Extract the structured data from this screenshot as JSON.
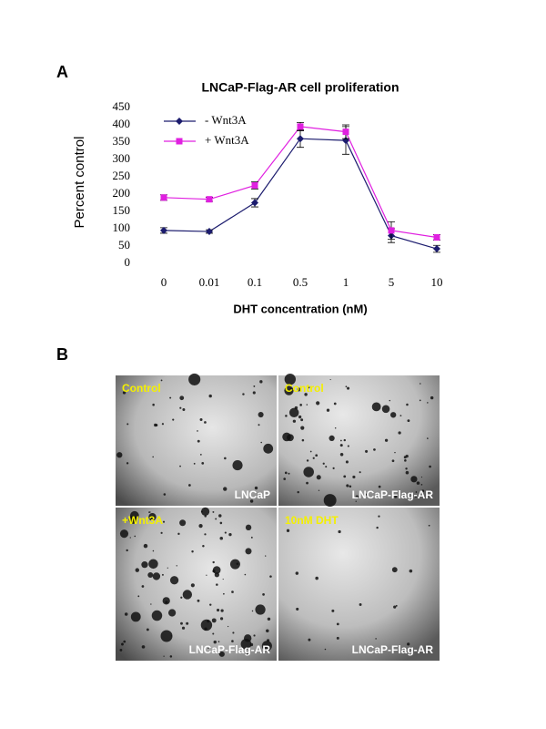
{
  "chart_data": {
    "type": "line",
    "title": "LNCaP-Flag-AR cell proliferation",
    "x_label": "DHT concentration (nM)",
    "y_label": "Percent control",
    "categories": [
      "0",
      "0.01",
      "0.1",
      "0.5",
      "1",
      "5",
      "10"
    ],
    "series": [
      {
        "name": "- Wnt3A",
        "color": "#1c1c6e",
        "marker": "diamond",
        "values": [
          95,
          92,
          175,
          360,
          355,
          80,
          42
        ],
        "errors": [
          8,
          5,
          12,
          25,
          40,
          20,
          10
        ]
      },
      {
        "name": "+ Wnt3A",
        "color": "#e020e0",
        "marker": "square",
        "values": [
          190,
          185,
          225,
          395,
          380,
          95,
          75
        ],
        "errors": [
          8,
          6,
          10,
          12,
          20,
          25,
          8
        ]
      }
    ],
    "ylim": [
      0,
      450
    ],
    "yticks": [
      0,
      50,
      100,
      150,
      200,
      250,
      300,
      350,
      400,
      450
    ],
    "grid": false,
    "legend": "top-left"
  },
  "figure": {
    "panel_a_label": "A",
    "panel_b_label": "B",
    "photos": [
      {
        "top_label": "Control",
        "bottom_label": "LNCaP"
      },
      {
        "top_label": "Control",
        "bottom_label": "LNCaP-Flag-AR"
      },
      {
        "top_label": "+Wnt3A",
        "bottom_label": "LNCaP-Flag-AR"
      },
      {
        "top_label": "10nM DHT",
        "bottom_label": "LNCaP-Flag-AR"
      }
    ]
  }
}
